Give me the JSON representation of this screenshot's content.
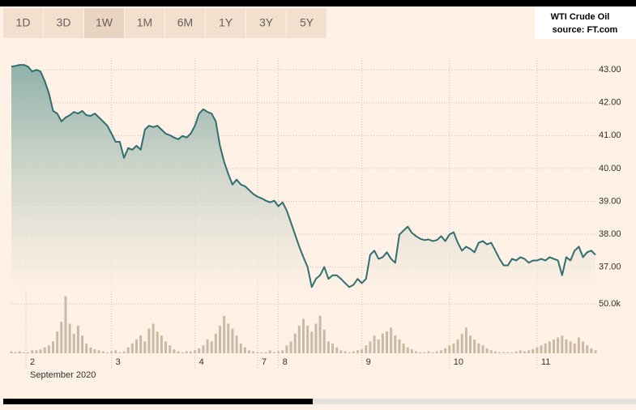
{
  "tabs": {
    "items": [
      "1D",
      "3D",
      "1W",
      "1M",
      "6M",
      "1Y",
      "3Y",
      "5Y"
    ],
    "active": 2
  },
  "chart_data": {
    "type": "line",
    "title": "WTI Crude Oil",
    "source": "source: FT.com",
    "xlabel": "September 2020",
    "x": [
      0,
      1,
      2,
      3,
      4,
      5,
      6,
      7,
      8,
      9,
      10,
      11,
      12,
      13,
      14,
      15,
      16,
      17,
      18,
      19,
      20,
      21,
      22,
      23,
      24,
      25,
      26,
      27,
      28,
      29,
      30,
      31,
      32,
      33,
      34,
      35,
      36,
      37,
      38,
      39,
      40,
      41,
      42,
      43,
      44,
      45,
      46,
      47,
      48,
      49,
      50,
      51,
      52,
      53,
      54,
      55,
      56,
      57,
      58,
      59,
      60,
      61,
      62,
      63,
      64,
      65,
      66,
      67,
      68,
      69,
      70,
      71,
      72,
      73,
      74,
      75,
      76,
      77,
      78,
      79,
      80,
      81,
      82,
      83,
      84,
      85,
      86,
      87,
      88,
      89,
      90,
      91,
      92,
      93,
      94,
      95,
      96,
      97,
      98,
      99,
      100,
      101,
      102,
      103,
      104,
      105,
      106,
      107,
      108,
      109,
      110,
      111,
      112,
      113,
      114,
      115,
      116,
      117,
      118,
      119,
      120,
      121,
      122,
      123,
      124,
      125,
      126,
      127,
      128,
      129,
      130,
      131,
      132,
      133,
      134,
      135,
      136,
      137,
      138,
      139,
      140
    ],
    "xlim": [
      0,
      140
    ],
    "xticks": [
      {
        "value": 3.5,
        "label": "2"
      },
      {
        "value": 24,
        "label": "3"
      },
      {
        "value": 44,
        "label": "4"
      },
      {
        "value": 59,
        "label": "7"
      },
      {
        "value": 64,
        "label": "8"
      },
      {
        "value": 84,
        "label": "9"
      },
      {
        "value": 105,
        "label": "10"
      },
      {
        "value": 126,
        "label": "11"
      }
    ],
    "ylim": [
      36.25,
      43.35
    ],
    "yticks": [
      {
        "value": 37,
        "label": "37.00"
      },
      {
        "value": 38,
        "label": "38.00"
      },
      {
        "value": 39,
        "label": "39.00"
      },
      {
        "value": 40,
        "label": "40.00"
      },
      {
        "value": 41,
        "label": "41.00"
      },
      {
        "value": 42,
        "label": "42.00"
      },
      {
        "value": 43,
        "label": "43.00"
      }
    ],
    "y2lim": [
      0,
      60000
    ],
    "y2ticks": [
      {
        "value": 50000,
        "label": "50.0k"
      }
    ],
    "grid": true,
    "series": [
      {
        "type": "area",
        "color": "#2f6f72",
        "values": [
          43.1,
          43.12,
          43.15,
          43.15,
          43.1,
          42.95,
          43.0,
          42.95,
          42.66,
          42.29,
          41.75,
          41.67,
          41.43,
          41.55,
          41.62,
          41.72,
          41.67,
          41.75,
          41.62,
          41.6,
          41.67,
          41.55,
          41.43,
          41.3,
          41.06,
          40.81,
          40.81,
          40.32,
          40.62,
          40.57,
          40.69,
          40.57,
          41.18,
          41.3,
          41.26,
          41.3,
          41.18,
          41.06,
          41.01,
          40.94,
          40.89,
          40.99,
          40.94,
          41.06,
          41.3,
          41.67,
          41.8,
          41.72,
          41.67,
          41.43,
          40.69,
          40.2,
          39.83,
          39.51,
          39.66,
          39.51,
          39.46,
          39.34,
          39.22,
          39.14,
          39.09,
          39.02,
          38.97,
          39.02,
          38.85,
          38.97,
          38.72,
          38.36,
          37.99,
          37.62,
          37.3,
          37.0,
          36.39,
          36.64,
          36.75,
          37.0,
          36.64,
          36.75,
          36.75,
          36.64,
          36.51,
          36.39,
          36.46,
          36.64,
          36.51,
          36.64,
          37.37,
          37.5,
          37.25,
          37.3,
          37.45,
          37.25,
          37.13,
          37.99,
          38.11,
          38.23,
          38.04,
          37.94,
          37.86,
          37.82,
          37.84,
          37.79,
          37.82,
          37.94,
          37.79,
          37.99,
          38.06,
          37.74,
          37.5,
          37.62,
          37.55,
          37.45,
          37.74,
          37.79,
          37.69,
          37.74,
          37.5,
          37.25,
          37.05,
          37.05,
          37.25,
          37.2,
          37.3,
          37.25,
          37.13,
          37.2,
          37.2,
          37.25,
          37.2,
          37.3,
          37.25,
          37.2,
          36.75,
          37.3,
          37.2,
          37.5,
          37.62,
          37.3,
          37.45,
          37.5,
          37.37
        ]
      },
      {
        "type": "bar",
        "axis": "y2",
        "color": "#c9b9a6",
        "values": [
          2000,
          1000,
          2000,
          1000,
          1000,
          3000,
          3000,
          4000,
          6000,
          8000,
          12000,
          22000,
          32000,
          58000,
          30000,
          20000,
          28000,
          18000,
          10000,
          6000,
          4000,
          3000,
          2000,
          1000,
          2000,
          3000,
          1000,
          2000,
          6000,
          10000,
          14000,
          18000,
          12000,
          25000,
          30000,
          22000,
          18000,
          12000,
          8000,
          4000,
          2000,
          1000,
          2000,
          2000,
          3000,
          5000,
          8000,
          14000,
          12000,
          20000,
          28000,
          38000,
          30000,
          25000,
          18000,
          10000,
          6000,
          3000,
          2000,
          1000,
          1000,
          1000,
          3000,
          1000,
          2000,
          3000,
          8000,
          12000,
          20000,
          28000,
          35000,
          28000,
          22000,
          30000,
          38000,
          24000,
          12000,
          10000,
          6000,
          3000,
          2000,
          1000,
          2000,
          3000,
          4000,
          8000,
          12000,
          18000,
          14000,
          20000,
          22000,
          26000,
          18000,
          14000,
          10000,
          6000,
          4000,
          2000,
          1000,
          1000,
          2000,
          1000,
          2000,
          3000,
          5000,
          8000,
          10000,
          14000,
          20000,
          26000,
          18000,
          14000,
          10000,
          8000,
          5000,
          3000,
          2000,
          1000,
          1000,
          1000,
          1000,
          2000,
          3000,
          2000,
          3000,
          4000,
          6000,
          8000,
          10000,
          12000,
          14000,
          16000,
          18000,
          14000,
          12000,
          10000,
          16000,
          12000,
          8000,
          5000,
          3000
        ]
      }
    ]
  }
}
